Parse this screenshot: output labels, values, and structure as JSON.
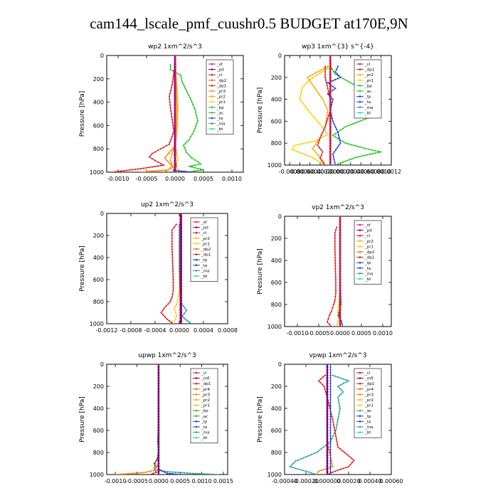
{
  "figure": {
    "title": "cam144_lscale_pmf_cuushr0.5  BUDGET at170E,9N"
  },
  "colors": {
    "sf": "#e8127a",
    "pd": "#800080",
    "cl": "#d2143c",
    "mfl": "#800080",
    "dp1": "#dc1e1e",
    "dp2": "#e86b00",
    "pr1": "#ffcc00",
    "pr2": "#ffa500",
    "pr3": "#ff7f00",
    "pr4": "#ff5500",
    "bp": "#22c222",
    "ac": "#22c222",
    "tp": "#1f3fd6",
    "ta": "#1f3fd6",
    "ma": "#2aa198",
    "bt": "#19d3e0"
  },
  "chart_data": [
    {
      "type": "line",
      "title": "wp2   1xm^2/s^3",
      "ylabel": "Pressure  [hPa]",
      "xlim": [
        -0.0012,
        0.0012
      ],
      "ylim": [
        1000,
        0
      ],
      "xticks": [
        -0.001,
        -0.0005,
        0,
        0.0005,
        0.001
      ],
      "xticklabels": [
        "-0.0010",
        "-0.0005",
        "0.0000",
        "0.0005",
        "0.0010"
      ],
      "yticks": [
        0,
        200,
        400,
        600,
        800,
        1000
      ],
      "legend": [
        "_sf",
        "_pd",
        "_cl",
        "_dp2",
        "_dp1",
        "_pr3",
        "_pr2",
        "_pr1",
        "_bp",
        "_ac",
        "_ta",
        "_ma",
        "_bt"
      ],
      "series": [
        {
          "name": "_bp",
          "key": "bp",
          "x": [
            -8e-05,
            -8e-05,
            0.0001,
            0.00012,
            0.0002,
            0.00028,
            0.00035,
            0.0004,
            0.00033,
            0.00025,
            0.00015,
            0.0002,
            0.0003,
            0.0004,
            0.00045,
            0.00025,
            0.0005,
            0.0002
          ],
          "p": [
            80,
            120,
            170,
            220,
            300,
            380,
            460,
            560,
            650,
            720,
            770,
            830,
            880,
            910,
            930,
            950,
            980,
            1000
          ]
        },
        {
          "name": "_dp1",
          "key": "dp1",
          "x": [
            0,
            -2e-05,
            -5e-05,
            -0.0001,
            -8e-05,
            -5e-05,
            -2e-05,
            -0.0001,
            -0.00025,
            -0.0004,
            -0.00045,
            -0.00035,
            -0.0002,
            -0.0006,
            -0.0011
          ],
          "p": [
            80,
            150,
            250,
            350,
            450,
            550,
            650,
            760,
            800,
            840,
            870,
            900,
            940,
            970,
            1000
          ]
        },
        {
          "name": "_pr3",
          "key": "pr3",
          "x": [
            0,
            2e-05,
            4e-05,
            4e-05,
            2e-05,
            0,
            -0.0001,
            -0.00018,
            -0.0001,
            -5e-05,
            -0.00012,
            -0.0006
          ],
          "p": [
            80,
            200,
            400,
            600,
            700,
            780,
            830,
            880,
            920,
            950,
            980,
            1000
          ]
        },
        {
          "name": "_pr2",
          "key": "pr2",
          "x": [
            0,
            3e-05,
            5e-05,
            3e-05,
            0,
            -5e-05,
            -8e-05,
            -3e-05,
            -0.0002
          ],
          "p": [
            80,
            250,
            450,
            650,
            760,
            840,
            900,
            960,
            1000
          ]
        },
        {
          "name": "_pr1",
          "key": "pr1",
          "x": [
            0,
            2e-05,
            3e-05,
            2e-05,
            0,
            5e-05,
            2e-05,
            0.0001
          ],
          "p": [
            80,
            250,
            450,
            650,
            760,
            880,
            950,
            1000
          ]
        },
        {
          "name": "_ta",
          "key": "ta",
          "x": [
            0,
            1e-05,
            0,
            -1e-05,
            2e-05,
            -3e-05,
            0.0003
          ],
          "p": [
            80,
            300,
            600,
            850,
            950,
            985,
            1000
          ]
        },
        {
          "name": "_cl",
          "key": "cl",
          "x": [
            0,
            0,
            0,
            0,
            0,
            0
          ],
          "p": [
            80,
            300,
            500,
            700,
            900,
            1000
          ]
        },
        {
          "name": "_pd",
          "key": "pd",
          "x": [
            0,
            0,
            0
          ],
          "p": [
            0,
            500,
            1000
          ]
        },
        {
          "name": "_sf",
          "key": "sf",
          "x": [
            1e-05,
            1e-05,
            1e-05
          ],
          "p": [
            0,
            500,
            1000
          ]
        }
      ]
    },
    {
      "type": "line",
      "title": "wp3   1xm^{3} s^{-4}",
      "ylabel": "Pressure  [hPa]",
      "xlim": [
        -0.0009,
        0.0012
      ],
      "ylim": [
        1000,
        0
      ],
      "xticks": [
        -0.0008,
        -0.0006,
        -0.0004,
        -0.0002,
        0,
        0.0002,
        0.0004,
        0.0006,
        0.0008,
        0.001,
        0.0012
      ],
      "xticklabels": [
        "-0.0008",
        "-0.0006",
        "-0.0004",
        "-0.0002",
        "0.0000",
        "0.0002",
        "0.0004",
        "0.0006",
        "0.0008",
        "0.0010",
        "0.0012"
      ],
      "yticks": [
        0,
        200,
        400,
        600,
        800,
        1000
      ],
      "legend": [
        "_cl",
        "_dp1",
        "_pr2",
        "_pr1",
        "_bp",
        "_ac",
        "_tp",
        "_ta",
        "_ma",
        "_bt"
      ],
      "series": [
        {
          "name": "_ac",
          "key": "ac",
          "x": [
            0,
            0.0001,
            0.0004,
            0.0007,
            0.001,
            0.0008,
            0.0003,
            5e-05,
            0.0003,
            0.0007,
            0.001,
            0.0005,
            0.0001
          ],
          "p": [
            100,
            170,
            250,
            320,
            430,
            560,
            650,
            730,
            800,
            850,
            880,
            930,
            1000
          ]
        },
        {
          "name": "_pr1",
          "key": "pr1",
          "x": [
            0,
            -0.0002,
            -0.0004,
            -0.00055,
            -0.0006,
            -0.0004,
            -0.0002,
            -5e-05,
            -0.0003,
            -0.0007,
            -0.00075,
            -0.0004,
            -0.0001
          ],
          "p": [
            100,
            160,
            220,
            290,
            400,
            520,
            630,
            720,
            780,
            820,
            860,
            920,
            1000
          ]
        },
        {
          "name": "_pr2",
          "key": "pr2",
          "x": [
            -5e-05,
            -0.00025,
            -0.00045,
            -0.0003,
            -0.00015,
            -5e-05,
            -0.0001,
            -0.0002,
            -0.00035,
            -0.0002,
            -0.0001
          ],
          "p": [
            100,
            150,
            200,
            300,
            400,
            500,
            650,
            750,
            850,
            930,
            1000
          ]
        },
        {
          "name": "_dp1",
          "key": "dp1",
          "x": [
            -0.0001,
            -0.0001,
            -5e-05,
            0,
            0,
            -0.0001,
            -0.0002,
            -0.00025,
            -0.00015,
            -0.0002,
            -0.0001
          ],
          "p": [
            100,
            200,
            300,
            400,
            500,
            650,
            750,
            820,
            880,
            940,
            1000
          ]
        },
        {
          "name": "_tp",
          "key": "tp",
          "x": [
            0.00015,
            0.0001,
            0.0002,
            -5e-05,
            0.0001,
            -5e-05,
            5e-05,
            0,
            5e-05,
            0.00015,
            0.0002,
            5e-05,
            0.0001
          ],
          "p": [
            100,
            150,
            200,
            250,
            300,
            350,
            400,
            500,
            600,
            700,
            800,
            900,
            1000
          ]
        },
        {
          "name": "_cl",
          "key": "cl",
          "x": [
            0,
            0,
            0,
            0,
            0
          ],
          "p": [
            0,
            300,
            600,
            900,
            1000
          ]
        }
      ]
    },
    {
      "type": "line",
      "title": "up2   1xm^2/s^3",
      "ylabel": "Pressure  [hPa]",
      "xlim": [
        -0.0012,
        0.0008
      ],
      "ylim": [
        1000,
        0
      ],
      "xticks": [
        -0.0012,
        -0.0008,
        -0.0004,
        0,
        0.0004,
        0.0008
      ],
      "xticklabels": [
        "-0.0012",
        "-0.0008",
        "-0.0004",
        "0.0000",
        "0.0004",
        "0.0008"
      ],
      "yticks": [
        0,
        200,
        400,
        600,
        800,
        1000
      ],
      "legend": [
        "_sf",
        "_pd",
        "_cl",
        "_pr2",
        "_pr1",
        "_dp2",
        "_dp1",
        "_tp",
        "_ta",
        "_ma",
        "_bt"
      ],
      "series": [
        {
          "name": "_dp1",
          "key": "dp1",
          "x": [
            -5e-05,
            -0.00012,
            -0.00012,
            -0.00011,
            -0.0001,
            -0.0001,
            -0.00012,
            -0.00015,
            -0.00025,
            -0.0003,
            -0.0002,
            -0.0001
          ],
          "p": [
            100,
            150,
            300,
            450,
            600,
            700,
            760,
            800,
            860,
            900,
            960,
            1000
          ]
        },
        {
          "name": "_pr1",
          "key": "pr1",
          "x": [
            0,
            0,
            0,
            0,
            -3e-05,
            -8e-05,
            -4e-05,
            -0.0001
          ],
          "p": [
            100,
            300,
            500,
            700,
            800,
            870,
            930,
            1000
          ]
        },
        {
          "name": "_ma",
          "key": "ma",
          "x": [
            0,
            0,
            2e-05,
            0.00012,
            5e-05,
            0.0001,
            0.0002
          ],
          "p": [
            100,
            500,
            800,
            880,
            930,
            960,
            1000
          ]
        },
        {
          "name": "_cl",
          "key": "cl",
          "x": [
            2e-05,
            2e-05,
            2e-05,
            2e-05
          ],
          "p": [
            0,
            400,
            800,
            1000
          ]
        },
        {
          "name": "_pd",
          "key": "pd",
          "x": [
            3e-05,
            3e-05,
            3e-05
          ],
          "p": [
            0,
            500,
            1000
          ]
        }
      ]
    },
    {
      "type": "line",
      "title": "vp2   1xm^2/s^3",
      "ylabel": "Pressure  [hPa]",
      "xlim": [
        -0.0013,
        0.0012
      ],
      "ylim": [
        1000,
        0
      ],
      "xticks": [
        -0.001,
        -0.0005,
        0,
        0.0005,
        0.001
      ],
      "xticklabels": [
        "-0.0010",
        "-0.0005",
        "0.0000",
        "0.0005",
        "0.0010"
      ],
      "yticks": [
        0,
        200,
        400,
        600,
        800,
        1000
      ],
      "legend": [
        "_sf",
        "_pd",
        "_cl",
        "_pr2",
        "_pr1",
        "_dp2",
        "_dp1",
        "_tp",
        "_ta",
        "_ma",
        "_bt"
      ],
      "series": [
        {
          "name": "_dp1",
          "key": "dp1",
          "x": [
            -8e-05,
            -0.00012,
            -0.00012,
            -0.00011,
            -0.0001,
            -0.0001,
            -0.00012,
            -0.00015,
            -0.0002,
            -0.00025,
            -0.0003,
            -0.0002
          ],
          "p": [
            100,
            150,
            300,
            450,
            600,
            700,
            760,
            800,
            860,
            900,
            960,
            1000
          ]
        },
        {
          "name": "_pr1",
          "key": "pr1",
          "x": [
            0,
            0,
            0,
            0,
            -3e-05,
            -5e-05,
            -4e-05,
            -8e-05
          ],
          "p": [
            100,
            300,
            500,
            700,
            800,
            870,
            930,
            1000
          ]
        },
        {
          "name": "_tp",
          "key": "tp",
          "x": [
            0,
            0,
            2e-05,
            -4e-05,
            3e-05,
            6e-05
          ],
          "p": [
            100,
            500,
            800,
            900,
            950,
            1000
          ]
        },
        {
          "name": "_cl",
          "key": "cl",
          "x": [
            0,
            0,
            0,
            0
          ],
          "p": [
            0,
            400,
            800,
            1000
          ]
        }
      ]
    },
    {
      "type": "line",
      "title": "upwp   1xm^2/s^3",
      "ylabel": "Pressure  [hPa]",
      "xlim": [
        -0.0012,
        0.0016
      ],
      "ylim": [
        1000,
        0
      ],
      "xticks": [
        -0.001,
        -0.0005,
        0,
        0.0005,
        0.001,
        0.0015
      ],
      "xticklabels": [
        "-0.0010",
        "-0.0005",
        "0.0000",
        "0.0005",
        "0.0010",
        "0.0015"
      ],
      "yticks": [
        0,
        200,
        400,
        600,
        800,
        1000
      ],
      "legend": [
        "_cl",
        "_mfl",
        "_dp1",
        "_pr4",
        "_pr3",
        "_pr2",
        "_pr1",
        "_bp",
        "_ac",
        "_tp",
        "_ta",
        "_ma",
        "_bt"
      ],
      "series": [
        {
          "name": "_ma",
          "key": "ma",
          "x": [
            0,
            0,
            0,
            -2e-05,
            0,
            -3e-05,
            -8e-05,
            -0.0001,
            -5e-05,
            0.0002,
            0.0008,
            0.0014
          ],
          "p": [
            100,
            300,
            500,
            700,
            800,
            850,
            900,
            940,
            960,
            975,
            990,
            1000
          ]
        },
        {
          "name": "_dp1",
          "key": "dp1",
          "x": [
            0,
            0,
            0,
            -0.0001,
            -5e-05,
            -0.0001,
            -5e-05,
            -0.0002
          ],
          "p": [
            100,
            600,
            850,
            900,
            930,
            960,
            980,
            1000
          ]
        },
        {
          "name": "_pr3",
          "key": "pr3",
          "x": [
            0,
            0,
            -0.0001,
            -0.0003,
            -0.0006,
            -0.001
          ],
          "p": [
            100,
            900,
            960,
            980,
            990,
            1000
          ]
        },
        {
          "name": "_tp",
          "key": "tp",
          "x": [
            0,
            0,
            0.0002,
            0.0005
          ],
          "p": [
            100,
            950,
            990,
            1000
          ]
        },
        {
          "name": "_mfl",
          "key": "mfl",
          "x": [
            0,
            0,
            0,
            0
          ],
          "p": [
            0,
            400,
            800,
            1000
          ]
        }
      ]
    },
    {
      "type": "line",
      "title": "vpwp   1xm^2/s^3",
      "ylabel": "Pressure  [hPa]",
      "xlim": [
        -0.0004,
        0.0006
      ],
      "ylim": [
        1000,
        0
      ],
      "xticks": [
        -0.0004,
        -0.0002,
        0,
        0.0002,
        0.0004,
        0.0006
      ],
      "xticklabels": [
        "-0.00040",
        "-0.00020",
        "0.000000",
        "0.00020",
        "0.00040",
        "0.00060"
      ],
      "yticks": [
        0,
        200,
        400,
        600,
        800,
        1000
      ],
      "legend": [
        "_cl",
        "_mfl",
        "_dp1",
        "_pr4",
        "_pr3",
        "_pr2",
        "_pr1",
        "_ac",
        "_tp",
        "_ta",
        "_ma",
        "_bt"
      ],
      "series": [
        {
          "name": "_ma",
          "key": "ma",
          "x": [
            5e-05,
            0.0002,
            0.0001,
            0.00015,
            0.0001,
            0.00012,
            0.0001,
            8e-05,
            3e-05,
            -0.0001,
            -0.0003,
            -0.00035,
            -0.0002,
            -0.0001
          ],
          "p": [
            100,
            150,
            200,
            250,
            300,
            400,
            500,
            600,
            700,
            800,
            880,
            930,
            970,
            1000
          ]
        },
        {
          "name": "_dp1",
          "key": "dp1",
          "x": [
            -2e-05,
            -8e-05,
            -3e-05,
            0,
            5e-05,
            0.0001,
            0.00025,
            0.0002,
            0.0001,
            5e-05,
            0
          ],
          "p": [
            100,
            150,
            200,
            300,
            500,
            750,
            870,
            930,
            960,
            980,
            1000
          ]
        },
        {
          "name": "_pr3",
          "key": "pr3",
          "x": [
            0,
            0,
            5e-05,
            -8e-05,
            -0.0001
          ],
          "p": [
            100,
            700,
            930,
            970,
            1000
          ]
        },
        {
          "name": "_tp",
          "key": "tp",
          "x": [
            3e-05,
            3e-05,
            3e-05,
            3e-05
          ],
          "p": [
            0,
            400,
            800,
            1000
          ]
        },
        {
          "name": "_mfl",
          "key": "mfl",
          "x": [
            0,
            0,
            0,
            0
          ],
          "p": [
            0,
            400,
            800,
            1000
          ]
        }
      ]
    }
  ]
}
